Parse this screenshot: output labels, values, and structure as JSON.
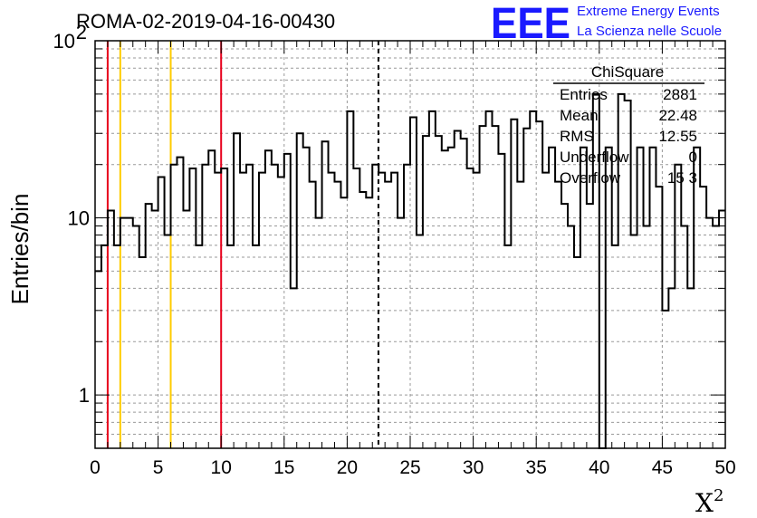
{
  "chart_data": {
    "type": "bar",
    "subtype": "histogram-step",
    "title": "ROMA-02-2019-04-16-00430",
    "ylabel": "Entries/bin",
    "xlabel": "X",
    "xlabel_sup": "2",
    "xlim": [
      0,
      50
    ],
    "ylim": [
      0.5,
      100
    ],
    "yscale": "log",
    "grid": true,
    "bin_width": 0.5,
    "x_ticks": [
      "0",
      "5",
      "10",
      "15",
      "20",
      "25",
      "30",
      "35",
      "40",
      "45",
      "50"
    ],
    "y_ticks": [
      {
        "value": 1,
        "label": "1"
      },
      {
        "value": 10,
        "label": "10"
      },
      {
        "value": 100,
        "label": "10",
        "sup": "2"
      }
    ],
    "values": [
      5,
      7,
      11,
      7,
      10,
      10,
      9,
      6,
      12,
      11,
      17,
      8,
      20,
      22,
      11,
      19,
      7,
      20,
      24,
      18,
      19,
      7,
      30,
      18,
      20,
      7,
      18,
      24,
      20,
      17,
      23,
      4,
      30,
      25,
      16,
      10,
      27,
      18,
      16,
      13,
      40,
      19,
      14,
      13,
      20,
      18,
      16,
      18,
      10,
      20,
      37,
      8,
      29,
      40,
      29,
      24,
      25,
      31,
      28,
      19,
      18,
      33,
      40,
      33,
      23,
      7,
      36,
      16,
      32,
      40,
      35,
      18,
      25,
      16,
      12,
      9,
      6,
      25,
      12,
      50,
      0.5,
      25,
      7,
      50,
      46,
      8,
      25,
      9,
      25,
      15,
      3,
      4,
      20,
      9,
      4,
      25,
      15,
      10,
      9,
      11
    ],
    "reference_lines": [
      {
        "x": 1,
        "color": "#e8001c",
        "style": "solid"
      },
      {
        "x": 2,
        "color": "#ffcc00",
        "style": "solid"
      },
      {
        "x": 6,
        "color": "#ffcc00",
        "style": "solid"
      },
      {
        "x": 10,
        "color": "#e8001c",
        "style": "solid"
      },
      {
        "x": 22.48,
        "color": "#000000",
        "style": "dashed"
      }
    ],
    "stats_box": {
      "title": "ChiSquare",
      "rows": [
        {
          "label": "Entries",
          "value": "2881"
        },
        {
          "label": "Mean",
          "value": "22.48"
        },
        {
          "label": "RMS",
          "value": "12.55"
        },
        {
          "label": "Underflow",
          "value": "0"
        },
        {
          "label": "Overflow",
          "value": "15 3"
        }
      ]
    },
    "logo": {
      "mark": "EEE",
      "line1": "Extreme Energy Events",
      "line2": "La Scienza nelle Scuole",
      "color": "#1a1aff"
    },
    "colors": {
      "histogram": "#000000",
      "grid": "#999999"
    }
  }
}
